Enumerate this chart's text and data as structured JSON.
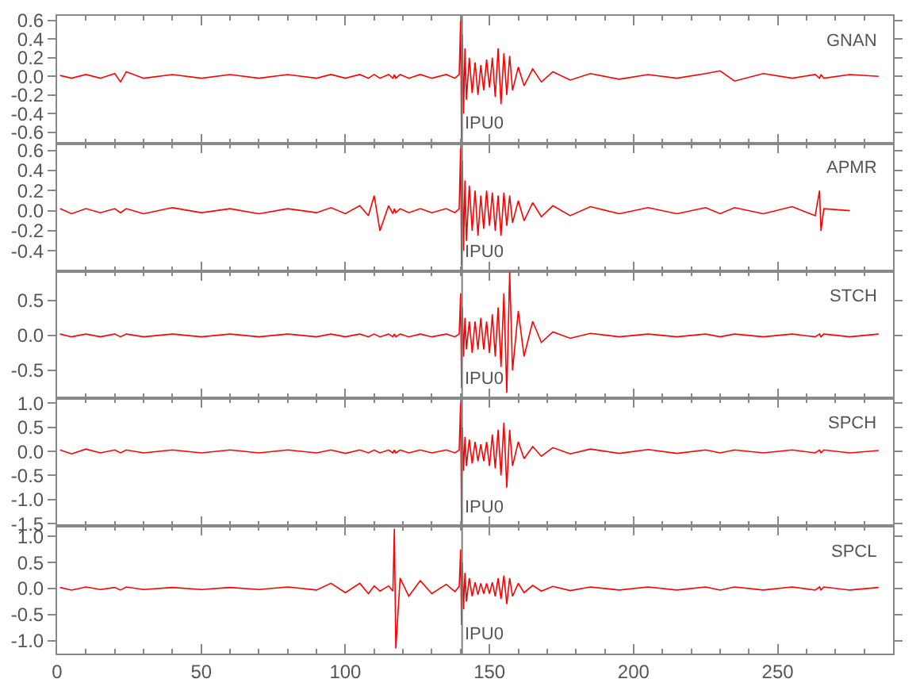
{
  "chart_data": [
    {
      "type": "line",
      "annotations": [
        "GNAN"
      ],
      "tick_labels": "y",
      "marker": "none",
      "line_style": "solid",
      "x": [
        1,
        5,
        10,
        15,
        20,
        22,
        24,
        30,
        40,
        50,
        60,
        70,
        80,
        90,
        95,
        100,
        105,
        108,
        110,
        112,
        115,
        116.5,
        117,
        117.5,
        119,
        122,
        126,
        130,
        135,
        138,
        139.5,
        140,
        140.3,
        140.6,
        141,
        141.5,
        142,
        143,
        144,
        145,
        146,
        147,
        148,
        149,
        150,
        151,
        152,
        153,
        154,
        155,
        156,
        157,
        158,
        160,
        162,
        165,
        168,
        172,
        178,
        185,
        195,
        205,
        215,
        225,
        230,
        235,
        245,
        255,
        263,
        264.5,
        265,
        266,
        275,
        285
      ],
      "series": [
        {
          "color": "#ff0000",
          "values": [
            0.01,
            -0.02,
            0.02,
            -0.02,
            0.03,
            -0.06,
            0.05,
            -0.02,
            0.02,
            -0.02,
            0.02,
            -0.02,
            0.02,
            -0.02,
            0.02,
            -0.02,
            0.02,
            -0.02,
            0.02,
            -0.02,
            0.02,
            -0.02,
            0.02,
            -0.02,
            0.02,
            -0.02,
            0.02,
            -0.02,
            0.02,
            -0.02,
            0.02,
            0.62,
            -0.7,
            0.45,
            -0.4,
            0.3,
            -0.25,
            0.2,
            -0.18,
            0.15,
            -0.2,
            0.12,
            -0.15,
            0.18,
            -0.12,
            0.2,
            -0.22,
            0.3,
            -0.3,
            0.25,
            -0.2,
            0.22,
            -0.15,
            0.1,
            -0.1,
            0.08,
            -0.06,
            0.05,
            -0.04,
            0.03,
            -0.03,
            0.02,
            -0.02,
            0.03,
            0.06,
            -0.05,
            0.03,
            -0.02,
            0.02,
            -0.02,
            0.02,
            -0.02,
            0.02,
            0
          ]
        }
      ],
      "xlim": [
        0,
        290
      ],
      "xticks": [
        0,
        50,
        100,
        150,
        200,
        250
      ],
      "ylim": [
        -0.72,
        0.65
      ],
      "yticks": [
        -0.6,
        -0.4,
        -0.2,
        {
          "value": 0,
          "label": "0.0"
        },
        0.2,
        0.4,
        0.6
      ],
      "ref_lines": [
        {
          "axis": "x",
          "value": 140.5,
          "label": "IPU0",
          "color": "#808080"
        }
      ]
    },
    {
      "type": "line",
      "annotations": [
        "APMR"
      ],
      "tick_labels": "y",
      "marker": "none",
      "line_style": "solid",
      "x": [
        1,
        5,
        10,
        15,
        20,
        22,
        24,
        30,
        40,
        50,
        60,
        70,
        80,
        90,
        95,
        100,
        105,
        108,
        110,
        112,
        115,
        116.5,
        117,
        117.5,
        119,
        122,
        126,
        130,
        135,
        138,
        139.5,
        140,
        140.3,
        140.6,
        141,
        141.5,
        142,
        143,
        144,
        145,
        146,
        147,
        148,
        149,
        150,
        151,
        152,
        153,
        154,
        155,
        156,
        157,
        158,
        160,
        162,
        165,
        168,
        172,
        178,
        185,
        195,
        205,
        215,
        225,
        230,
        235,
        245,
        255,
        263,
        264.5,
        265,
        266,
        275
      ],
      "series": [
        {
          "color": "#ff0000",
          "values": [
            0.02,
            -0.03,
            0.02,
            -0.02,
            0.02,
            -0.02,
            0.02,
            -0.03,
            0.03,
            -0.02,
            0.02,
            -0.03,
            0.02,
            -0.02,
            0.03,
            -0.03,
            0.05,
            -0.05,
            0.15,
            -0.2,
            0.05,
            -0.03,
            0.02,
            -0.02,
            0.02,
            -0.02,
            0.02,
            -0.02,
            0.02,
            -0.02,
            0.02,
            0.65,
            -0.55,
            0.5,
            -0.4,
            0.3,
            -0.3,
            0.25,
            -0.2,
            0.2,
            -0.25,
            0.15,
            -0.18,
            0.2,
            -0.15,
            0.18,
            -0.2,
            0.15,
            -0.25,
            0.18,
            -0.15,
            0.15,
            -0.12,
            0.1,
            -0.1,
            0.08,
            -0.06,
            0.05,
            -0.05,
            0.04,
            -0.03,
            0.03,
            -0.03,
            0.03,
            -0.03,
            0.03,
            -0.03,
            0.04,
            -0.05,
            0.2,
            -0.2,
            0.02,
            0
          ]
        }
      ],
      "xlim": [
        0,
        290
      ],
      "xticks": [
        0,
        50,
        100,
        150,
        200,
        250
      ],
      "ylim": [
        -0.6,
        0.67
      ],
      "yticks": [
        -0.4,
        -0.2,
        {
          "value": 0,
          "label": "0.0"
        },
        0.2,
        0.4,
        0.6
      ],
      "ref_lines": [
        {
          "axis": "x",
          "value": 140.5,
          "label": "IPU0",
          "color": "#808080"
        }
      ]
    },
    {
      "type": "line",
      "annotations": [
        "STCH"
      ],
      "tick_labels": "y",
      "marker": "none",
      "line_style": "solid",
      "x": [
        1,
        5,
        10,
        15,
        20,
        22,
        24,
        30,
        40,
        50,
        60,
        70,
        80,
        90,
        95,
        100,
        105,
        108,
        110,
        112,
        115,
        116.5,
        117,
        117.5,
        119,
        122,
        126,
        130,
        135,
        138,
        139.5,
        140,
        140.3,
        140.6,
        141,
        141.5,
        142,
        143,
        144,
        145,
        146,
        147,
        148,
        149,
        150,
        151,
        152,
        153,
        154,
        155,
        156,
        157,
        158,
        160,
        162,
        165,
        168,
        172,
        178,
        185,
        195,
        205,
        215,
        225,
        230,
        235,
        245,
        255,
        263,
        264.5,
        265,
        266,
        275,
        285
      ],
      "series": [
        {
          "color": "#ff0000",
          "values": [
            0.02,
            -0.02,
            0.02,
            -0.02,
            0.02,
            -0.02,
            0.02,
            -0.02,
            0.02,
            -0.02,
            0.02,
            -0.02,
            0.02,
            -0.02,
            0.02,
            -0.02,
            0.02,
            -0.02,
            0.02,
            -0.02,
            0.02,
            -0.02,
            0.02,
            -0.02,
            0.02,
            -0.02,
            0.02,
            -0.02,
            0.02,
            -0.02,
            0.02,
            0.6,
            -0.75,
            0.4,
            -0.3,
            0.25,
            -0.2,
            0.2,
            -0.25,
            0.2,
            -0.2,
            0.25,
            -0.2,
            0.2,
            -0.25,
            0.3,
            -0.3,
            0.4,
            -0.45,
            0.6,
            -0.82,
            0.9,
            -0.5,
            0.35,
            -0.3,
            0.2,
            -0.1,
            0.05,
            -0.04,
            0.03,
            -0.02,
            0.02,
            -0.02,
            0.02,
            -0.02,
            0.02,
            -0.02,
            0.02,
            -0.02,
            0.02,
            -0.02,
            0.02,
            -0.02,
            0.02
          ]
        }
      ],
      "xlim": [
        0,
        290
      ],
      "xticks": [
        0,
        50,
        100,
        150,
        200,
        250
      ],
      "ylim": [
        -0.9,
        0.92
      ],
      "yticks": [
        -0.5,
        {
          "value": 0,
          "label": "0.0"
        },
        0.5
      ],
      "ref_lines": [
        {
          "axis": "x",
          "value": 140.5,
          "label": "IPU0",
          "color": "#808080"
        }
      ]
    },
    {
      "type": "line",
      "annotations": [
        "SPCH"
      ],
      "tick_labels": "y",
      "marker": "none",
      "line_style": "solid",
      "x": [
        1,
        5,
        10,
        15,
        20,
        22,
        24,
        30,
        40,
        50,
        60,
        70,
        80,
        90,
        95,
        100,
        105,
        108,
        110,
        112,
        115,
        116.5,
        117,
        117.5,
        119,
        122,
        126,
        130,
        135,
        138,
        139.5,
        140,
        140.3,
        140.6,
        141,
        141.5,
        142,
        143,
        144,
        145,
        146,
        147,
        148,
        149,
        150,
        151,
        152,
        153,
        154,
        155,
        156,
        157,
        158,
        160,
        162,
        165,
        168,
        172,
        178,
        185,
        195,
        205,
        215,
        225,
        230,
        235,
        245,
        255,
        263,
        264.5,
        265,
        266,
        275,
        285
      ],
      "series": [
        {
          "color": "#ff0000",
          "values": [
            0.03,
            -0.05,
            0.05,
            -0.03,
            0.03,
            -0.03,
            0.03,
            -0.03,
            0.03,
            -0.03,
            0.03,
            -0.03,
            0.03,
            -0.03,
            0.03,
            -0.04,
            0.03,
            -0.03,
            0.03,
            -0.03,
            0.03,
            -0.03,
            0.03,
            -0.03,
            0.03,
            -0.03,
            0.03,
            -0.03,
            0.03,
            -0.03,
            0.03,
            1.05,
            -1.5,
            0.5,
            -0.4,
            0.3,
            -0.3,
            0.25,
            -0.25,
            0.2,
            -0.2,
            0.15,
            -0.2,
            0.2,
            -0.3,
            0.35,
            -0.35,
            0.45,
            -0.5,
            0.6,
            -0.75,
            0.45,
            -0.3,
            0.2,
            -0.15,
            0.1,
            -0.1,
            0.08,
            -0.05,
            0.05,
            -0.04,
            0.04,
            -0.04,
            0.03,
            -0.03,
            0.03,
            -0.03,
            0.03,
            -0.03,
            0.03,
            -0.03,
            0.03,
            -0.03,
            0.02
          ]
        }
      ],
      "xlim": [
        0,
        290
      ],
      "xticks": [
        0,
        50,
        100,
        150,
        200,
        250
      ],
      "ylim": [
        -1.55,
        1.1
      ],
      "yticks": [
        -1.5,
        {
          "value": -1,
          "label": "-1.0"
        },
        -0.5,
        {
          "value": 0,
          "label": "0.0"
        },
        0.5,
        {
          "value": 1,
          "label": "1.0"
        }
      ],
      "ref_lines": [
        {
          "axis": "x",
          "value": 140.5,
          "label": "IPU0",
          "color": "#808080"
        }
      ]
    },
    {
      "type": "line",
      "annotations": [
        "SPCL"
      ],
      "marker": "none",
      "line_style": "solid",
      "x": [
        1,
        5,
        10,
        15,
        20,
        22,
        24,
        30,
        40,
        50,
        60,
        70,
        80,
        90,
        95,
        100,
        105,
        108,
        110,
        112,
        115,
        116.5,
        117,
        117.5,
        119,
        122,
        126,
        130,
        135,
        138,
        139.5,
        140,
        140.3,
        140.6,
        141,
        141.5,
        142,
        143,
        144,
        145,
        146,
        147,
        148,
        149,
        150,
        151,
        152,
        153,
        154,
        155,
        156,
        157,
        158,
        160,
        162,
        165,
        168,
        172,
        178,
        185,
        195,
        205,
        215,
        225,
        230,
        235,
        245,
        255,
        263,
        264.5,
        265,
        266,
        275,
        285
      ],
      "series": [
        {
          "color": "#ff0000",
          "values": [
            0.02,
            -0.03,
            0.03,
            -0.02,
            0.02,
            -0.03,
            0.03,
            -0.02,
            0.02,
            -0.02,
            0.02,
            -0.02,
            0.03,
            -0.03,
            0.1,
            -0.08,
            0.1,
            -0.1,
            0.05,
            -0.05,
            0.05,
            -0.05,
            1.15,
            -1.15,
            0.2,
            -0.15,
            0.15,
            -0.1,
            0.08,
            -0.06,
            0.04,
            0.75,
            -0.7,
            0.5,
            -0.4,
            0.3,
            -0.25,
            0.2,
            -0.15,
            0.12,
            -0.12,
            0.1,
            -0.1,
            0.1,
            -0.1,
            0.12,
            -0.15,
            0.2,
            -0.2,
            0.25,
            -0.3,
            0.2,
            -0.15,
            0.1,
            -0.08,
            0.06,
            -0.05,
            0.04,
            -0.04,
            0.03,
            -0.03,
            0.03,
            -0.03,
            0.03,
            -0.03,
            0.03,
            -0.03,
            0.03,
            -0.03,
            0.03,
            -0.03,
            0.03,
            -0.03,
            0.02
          ]
        }
      ],
      "xlim": [
        0,
        290
      ],
      "xticks": [
        0,
        50,
        100,
        150,
        200,
        250
      ],
      "ylim": [
        -1.25,
        1.2
      ],
      "yticks": [
        {
          "value": -1,
          "label": "-1.0"
        },
        -0.5,
        {
          "value": 0,
          "label": "0.0"
        },
        0.5,
        {
          "value": 1,
          "label": "1.0"
        }
      ],
      "ref_lines": [
        {
          "axis": "x",
          "value": 140.5,
          "label": "IPU0",
          "color": "#808080"
        }
      ]
    }
  ]
}
